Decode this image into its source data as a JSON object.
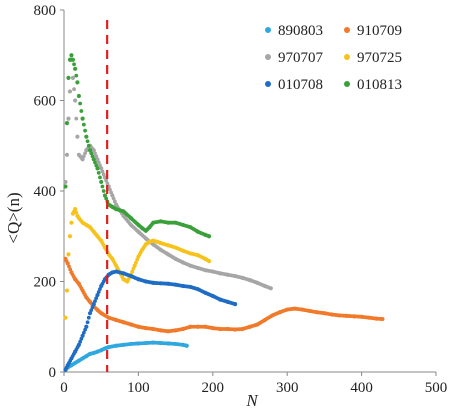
{
  "chart_data": {
    "type": "scatter",
    "xlabel": "N",
    "ylabel": "<Q>(n)",
    "xlim": [
      0,
      500
    ],
    "ylim": [
      0,
      800
    ],
    "x_ticks": [
      "0",
      "100",
      "200",
      "300",
      "400",
      "500"
    ],
    "y_ticks": [
      "0",
      "200",
      "400",
      "600",
      "800"
    ],
    "grid": false,
    "legend_placement": "top-right",
    "reference_line": {
      "x": 58,
      "color": "#e02020",
      "style": "dashed"
    },
    "series": [
      {
        "name": "890803",
        "color": "#2ea8df",
        "points": [
          [
            2,
            5
          ],
          [
            5,
            10
          ],
          [
            10,
            15
          ],
          [
            15,
            20
          ],
          [
            20,
            25
          ],
          [
            25,
            30
          ],
          [
            30,
            35
          ],
          [
            35,
            40
          ],
          [
            40,
            42
          ],
          [
            45,
            45
          ],
          [
            50,
            48
          ],
          [
            55,
            52
          ],
          [
            60,
            55
          ],
          [
            70,
            58
          ],
          [
            80,
            60
          ],
          [
            90,
            62
          ],
          [
            100,
            63
          ],
          [
            110,
            64
          ],
          [
            120,
            65
          ],
          [
            130,
            64
          ],
          [
            140,
            63
          ],
          [
            150,
            62
          ],
          [
            160,
            60
          ],
          [
            165,
            58
          ]
        ]
      },
      {
        "name": "910709",
        "color": "#f07a2a",
        "points": [
          [
            2,
            250
          ],
          [
            5,
            240
          ],
          [
            10,
            220
          ],
          [
            15,
            205
          ],
          [
            20,
            195
          ],
          [
            25,
            180
          ],
          [
            30,
            165
          ],
          [
            35,
            155
          ],
          [
            40,
            145
          ],
          [
            45,
            137
          ],
          [
            50,
            130
          ],
          [
            60,
            120
          ],
          [
            70,
            115
          ],
          [
            80,
            110
          ],
          [
            90,
            105
          ],
          [
            100,
            100
          ],
          [
            110,
            97
          ],
          [
            120,
            95
          ],
          [
            130,
            92
          ],
          [
            140,
            90
          ],
          [
            150,
            92
          ],
          [
            160,
            95
          ],
          [
            170,
            100
          ],
          [
            180,
            100
          ],
          [
            190,
            100
          ],
          [
            200,
            97
          ],
          [
            210,
            95
          ],
          [
            220,
            95
          ],
          [
            230,
            94
          ],
          [
            240,
            95
          ],
          [
            250,
            100
          ],
          [
            260,
            105
          ],
          [
            270,
            115
          ],
          [
            280,
            125
          ],
          [
            290,
            132
          ],
          [
            300,
            138
          ],
          [
            310,
            140
          ],
          [
            320,
            138
          ],
          [
            330,
            135
          ],
          [
            340,
            132
          ],
          [
            350,
            130
          ],
          [
            360,
            127
          ],
          [
            370,
            125
          ],
          [
            380,
            124
          ],
          [
            390,
            123
          ],
          [
            400,
            122
          ],
          [
            410,
            120
          ],
          [
            420,
            118
          ],
          [
            428,
            117
          ]
        ]
      },
      {
        "name": "970707",
        "color": "#a6a6a6",
        "points": [
          [
            2,
            420
          ],
          [
            4,
            480
          ],
          [
            6,
            560
          ],
          [
            8,
            620
          ],
          [
            10,
            690
          ],
          [
            12,
            650
          ],
          [
            15,
            600
          ],
          [
            18,
            520
          ],
          [
            20,
            480
          ],
          [
            25,
            470
          ],
          [
            30,
            490
          ],
          [
            35,
            500
          ],
          [
            40,
            490
          ],
          [
            45,
            470
          ],
          [
            50,
            450
          ],
          [
            55,
            430
          ],
          [
            60,
            410
          ],
          [
            65,
            390
          ],
          [
            70,
            370
          ],
          [
            80,
            345
          ],
          [
            90,
            325
          ],
          [
            100,
            310
          ],
          [
            110,
            295
          ],
          [
            120,
            282
          ],
          [
            130,
            270
          ],
          [
            140,
            260
          ],
          [
            150,
            250
          ],
          [
            160,
            242
          ],
          [
            170,
            235
          ],
          [
            180,
            230
          ],
          [
            190,
            225
          ],
          [
            200,
            222
          ],
          [
            210,
            218
          ],
          [
            220,
            215
          ],
          [
            230,
            212
          ],
          [
            240,
            208
          ],
          [
            250,
            203
          ],
          [
            260,
            197
          ],
          [
            270,
            190
          ],
          [
            278,
            185
          ]
        ]
      },
      {
        "name": "970725",
        "color": "#f7c21c",
        "points": [
          [
            2,
            120
          ],
          [
            4,
            180
          ],
          [
            6,
            260
          ],
          [
            8,
            300
          ],
          [
            10,
            330
          ],
          [
            12,
            350
          ],
          [
            15,
            360
          ],
          [
            18,
            345
          ],
          [
            20,
            340
          ],
          [
            25,
            330
          ],
          [
            30,
            325
          ],
          [
            35,
            320
          ],
          [
            40,
            310
          ],
          [
            45,
            300
          ],
          [
            50,
            290
          ],
          [
            55,
            275
          ],
          [
            60,
            260
          ],
          [
            65,
            250
          ],
          [
            70,
            235
          ],
          [
            75,
            220
          ],
          [
            80,
            205
          ],
          [
            85,
            200
          ],
          [
            90,
            215
          ],
          [
            95,
            235
          ],
          [
            100,
            255
          ],
          [
            105,
            270
          ],
          [
            110,
            282
          ],
          [
            115,
            288
          ],
          [
            120,
            290
          ],
          [
            125,
            288
          ],
          [
            130,
            285
          ],
          [
            140,
            280
          ],
          [
            150,
            275
          ],
          [
            160,
            268
          ],
          [
            170,
            262
          ],
          [
            180,
            258
          ],
          [
            190,
            250
          ],
          [
            195,
            245
          ]
        ]
      },
      {
        "name": "010708",
        "color": "#1f6cc4",
        "points": [
          [
            2,
            5
          ],
          [
            5,
            15
          ],
          [
            10,
            30
          ],
          [
            15,
            45
          ],
          [
            20,
            60
          ],
          [
            25,
            80
          ],
          [
            30,
            100
          ],
          [
            35,
            130
          ],
          [
            40,
            150
          ],
          [
            45,
            170
          ],
          [
            50,
            190
          ],
          [
            55,
            205
          ],
          [
            60,
            215
          ],
          [
            65,
            220
          ],
          [
            70,
            222
          ],
          [
            80,
            218
          ],
          [
            90,
            212
          ],
          [
            100,
            205
          ],
          [
            110,
            200
          ],
          [
            120,
            197
          ],
          [
            130,
            196
          ],
          [
            140,
            195
          ],
          [
            150,
            193
          ],
          [
            160,
            190
          ],
          [
            170,
            188
          ],
          [
            180,
            183
          ],
          [
            190,
            175
          ],
          [
            200,
            168
          ],
          [
            210,
            160
          ],
          [
            220,
            155
          ],
          [
            230,
            150
          ]
        ]
      },
      {
        "name": "010813",
        "color": "#3aa03a",
        "points": [
          [
            2,
            410
          ],
          [
            4,
            550
          ],
          [
            6,
            650
          ],
          [
            8,
            690
          ],
          [
            10,
            700
          ],
          [
            12,
            690
          ],
          [
            15,
            670
          ],
          [
            18,
            640
          ],
          [
            20,
            610
          ],
          [
            25,
            560
          ],
          [
            30,
            520
          ],
          [
            35,
            490
          ],
          [
            40,
            470
          ],
          [
            45,
            450
          ],
          [
            50,
            420
          ],
          [
            55,
            390
          ],
          [
            60,
            370
          ],
          [
            65,
            365
          ],
          [
            70,
            360
          ],
          [
            80,
            355
          ],
          [
            90,
            340
          ],
          [
            100,
            325
          ],
          [
            105,
            318
          ],
          [
            110,
            312
          ],
          [
            115,
            320
          ],
          [
            120,
            330
          ],
          [
            130,
            333
          ],
          [
            140,
            330
          ],
          [
            150,
            330
          ],
          [
            160,
            325
          ],
          [
            170,
            320
          ],
          [
            180,
            310
          ],
          [
            190,
            303
          ],
          [
            195,
            300
          ]
        ]
      }
    ]
  }
}
